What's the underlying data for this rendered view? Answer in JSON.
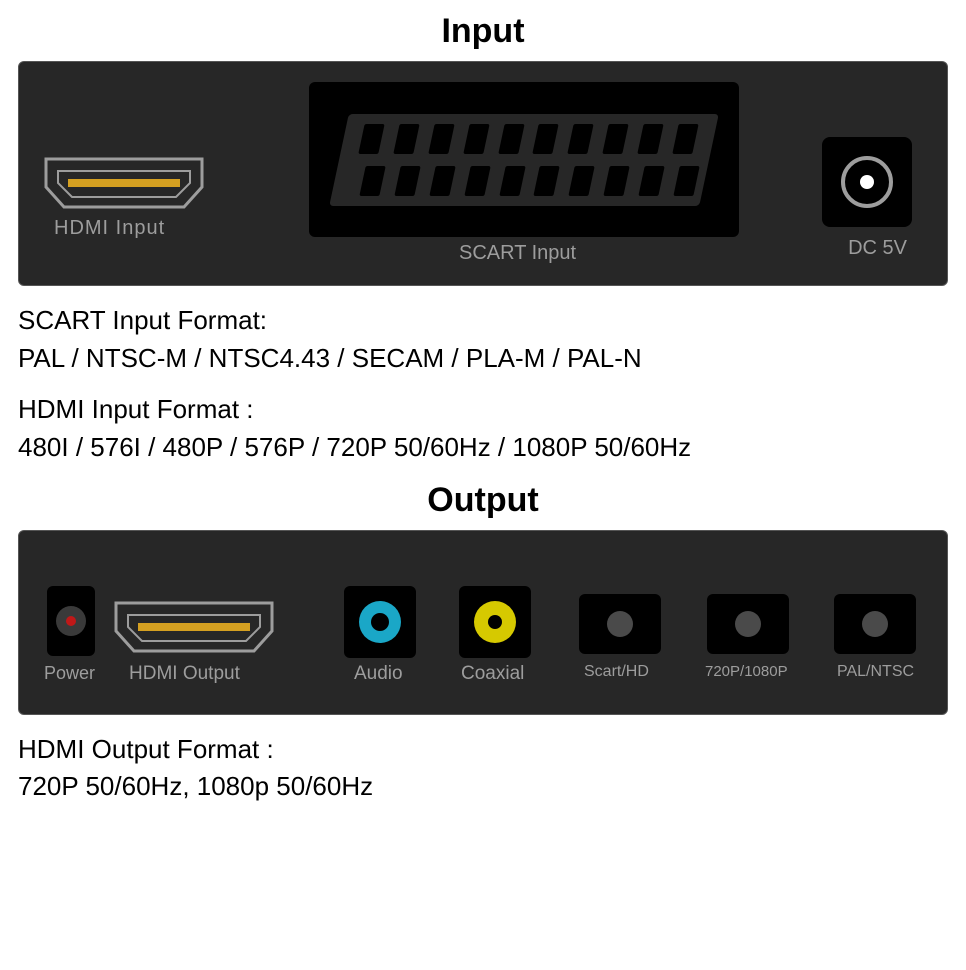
{
  "colors": {
    "panel_bg": "#272727",
    "panel_border": "#555555",
    "label_text": "#9d9d9d",
    "hdmi_outline": "#9d9d9d",
    "hdmi_gold": "#d5a021",
    "black": "#000000",
    "power_led": "#c01818",
    "audio_ring": "#1aa7c7",
    "coax_ring": "#d6c900",
    "white": "#ffffff"
  },
  "input": {
    "title": "Input",
    "hdmi_label": "HDMI Input",
    "scart_label": "SCART Input",
    "scart_pins_per_row": 10,
    "dc_label": "DC 5V"
  },
  "scart_info": {
    "header": "SCART Input Format:",
    "body": "PAL / NTSC-M / NTSC4.43 / SECAM / PLA-M / PAL-N"
  },
  "hdmi_in_info": {
    "header": "HDMI Input Format :",
    "body": "480I / 576I / 480P / 576P / 720P 50/60Hz / 1080P 50/60Hz"
  },
  "output": {
    "title": "Output",
    "power_label": "Power",
    "hdmi_label": "HDMI Output",
    "audio_label": "Audio",
    "coax_label": "Coaxial",
    "btn1_label": "Scart/HD",
    "btn2_label": "720P/1080P",
    "btn3_label": "PAL/NTSC",
    "audio_ring_color": "#1aa7c7",
    "audio_hole_size": 18,
    "coax_ring_color": "#d6c900",
    "coax_hole_size": 14
  },
  "hdmi_out_info": {
    "header": "HDMI Output Format :",
    "body": "720P 50/60Hz, 1080p 50/60Hz"
  }
}
